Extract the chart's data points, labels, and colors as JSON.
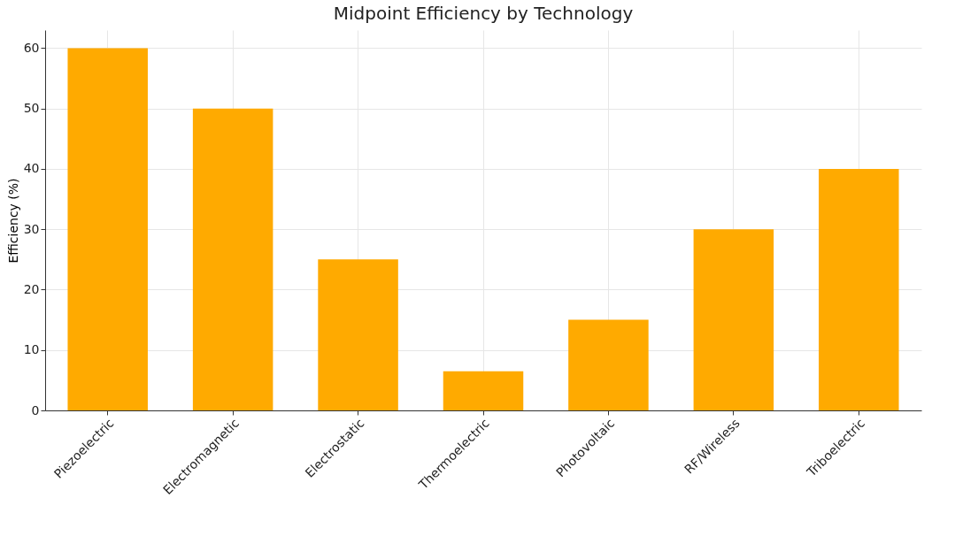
{
  "chart_data": {
    "type": "bar",
    "title": "Midpoint Efficiency by Technology",
    "ylabel": "Efficiency (%)",
    "categories": [
      "Piezoelectric",
      "Electromagnetic",
      "Electrostatic",
      "Thermoelectric",
      "Photovoltaic",
      "RF/Wireless",
      "Triboelectric"
    ],
    "values": [
      60,
      50,
      25,
      6.5,
      15,
      30,
      40
    ],
    "color": "#ffaa00",
    "ylim": [
      0,
      63
    ],
    "yticks": [
      0,
      10,
      20,
      30,
      40,
      50,
      60
    ],
    "grid": true
  }
}
